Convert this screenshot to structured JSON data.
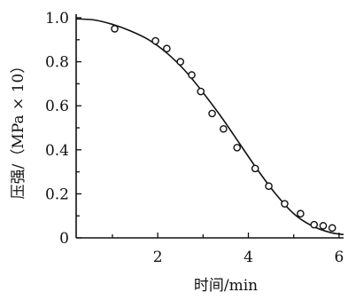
{
  "chart_data": {
    "type": "scatter",
    "title": "",
    "xlabel": "时间/min",
    "ylabel": "压强/（MPa × 10）",
    "xlim": [
      0.2,
      6.1
    ],
    "ylim": [
      0,
      1.0
    ],
    "x_ticks": [
      {
        "value": 2,
        "label": "2"
      },
      {
        "value": 4,
        "label": "4"
      },
      {
        "value": 6,
        "label": "6"
      }
    ],
    "y_ticks": [
      {
        "value": 0,
        "label": "0"
      },
      {
        "value": 0.2,
        "label": "0.2"
      },
      {
        "value": 0.4,
        "label": "0.4"
      },
      {
        "value": 0.6,
        "label": "0.6"
      },
      {
        "value": 0.8,
        "label": "0.8"
      },
      {
        "value": 1.0,
        "label": "1.0"
      }
    ],
    "grid": false,
    "legend": "none",
    "series": [
      {
        "kind": "scatter",
        "marker": "open-circle",
        "x": [
          1.05,
          1.95,
          2.2,
          2.5,
          2.75,
          2.95,
          3.2,
          3.45,
          3.75,
          4.15,
          4.45,
          4.8,
          5.15,
          5.45,
          5.65,
          5.85
        ],
        "y": [
          0.95,
          0.895,
          0.86,
          0.8,
          0.74,
          0.665,
          0.565,
          0.495,
          0.41,
          0.315,
          0.235,
          0.155,
          0.11,
          0.06,
          0.055,
          0.045
        ]
      },
      {
        "kind": "line",
        "style": "smooth",
        "x": [
          0.2,
          0.6,
          1.0,
          1.4,
          1.8,
          2.2,
          2.6,
          3.0,
          3.4,
          3.8,
          4.2,
          4.6,
          5.0,
          5.4,
          5.8,
          6.1
        ],
        "y": [
          0.995,
          0.99,
          0.97,
          0.94,
          0.9,
          0.84,
          0.76,
          0.66,
          0.55,
          0.43,
          0.31,
          0.2,
          0.11,
          0.055,
          0.025,
          0.015
        ]
      }
    ],
    "colors": {
      "axis": "#111111",
      "line": "#111111",
      "marker_stroke": "#111111",
      "marker_fill": "#ffffff"
    }
  }
}
